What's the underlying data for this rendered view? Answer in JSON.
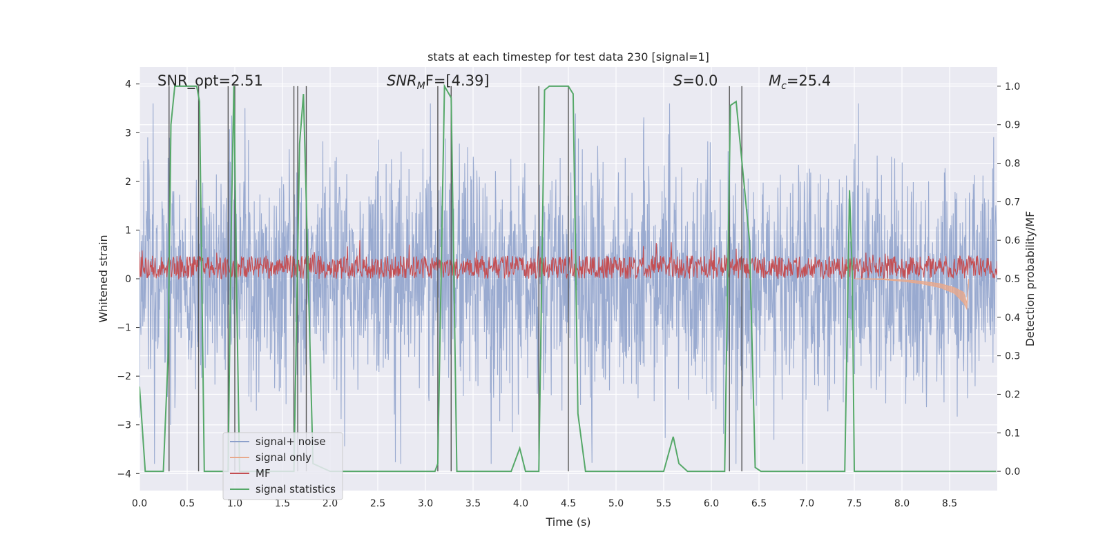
{
  "chart_data": {
    "type": "line",
    "title": "stats at each timestep for test data 230 [signal=1]",
    "xlabel": "Time (s)",
    "ylabel_left": "Whitened strain",
    "ylabel_right": "Detection probability/MF",
    "xlim": [
      0.0,
      9.0
    ],
    "ylim_left": [
      -4.35,
      4.35
    ],
    "ylim_right": [
      -0.05,
      1.05
    ],
    "x_ticks": [
      "0.0",
      "0.5",
      "1.0",
      "1.5",
      "2.0",
      "2.5",
      "3.0",
      "3.5",
      "4.0",
      "4.5",
      "5.0",
      "5.5",
      "6.0",
      "6.5",
      "7.0",
      "7.5",
      "8.0",
      "8.5"
    ],
    "y_ticks_left": [
      "4",
      "3",
      "2",
      "1",
      "0",
      "−1",
      "−2",
      "−3",
      "−4"
    ],
    "y_ticks_right": [
      "1.0",
      "0.9",
      "0.8",
      "0.7",
      "0.6",
      "0.5",
      "0.4",
      "0.3",
      "0.2",
      "0.1",
      "0.0"
    ],
    "annotations": {
      "snr_opt": "SNR_opt=2.51",
      "snr_mf_base": "SNR",
      "snr_mf_sub": "M",
      "snr_mf_rest": "F=[4.39]",
      "s_var": "S",
      "s_rest": "=0.0",
      "mc_var": "M",
      "mc_sub": "c",
      "mc_rest": "=25.4"
    },
    "legend": {
      "location": "lower-left",
      "items": [
        {
          "label": "signal+ noise",
          "color": "#8da0cb"
        },
        {
          "label": "signal only",
          "color": "#e8a98c"
        },
        {
          "label": "MF",
          "color": "#c44e52"
        },
        {
          "label": "signal statistics",
          "color": "#55a868"
        }
      ]
    },
    "series": [
      {
        "name": "signal+ noise",
        "axis": "left",
        "description": "whitened strain noise, amplitude roughly ±2.5 with peaks to ±3.5",
        "amplitude": 1.6
      },
      {
        "name": "signal only",
        "axis": "left",
        "description": "chirp near end of segment",
        "x": [
          7.5,
          7.8,
          8.0,
          8.2,
          8.4,
          8.55,
          8.65,
          8.68,
          8.7
        ],
        "y_top": [
          0.0,
          0.0,
          -0.02,
          -0.05,
          -0.1,
          -0.18,
          -0.28,
          -0.5,
          -0.1
        ],
        "y_bottom": [
          0.0,
          -0.02,
          -0.05,
          -0.1,
          -0.18,
          -0.3,
          -0.5,
          -0.62,
          0.0
        ]
      },
      {
        "name": "MF",
        "axis": "right",
        "description": "matched filter output, mean ~0.53",
        "mean": 0.53,
        "range": [
          0.5,
          0.6
        ]
      },
      {
        "name": "signal statistics",
        "axis": "right",
        "x": [
          0.0,
          0.06,
          0.25,
          0.3,
          0.33,
          0.37,
          0.45,
          0.6,
          0.63,
          0.68,
          0.93,
          0.96,
          0.99,
          1.02,
          1.05,
          1.08,
          1.62,
          1.68,
          1.72,
          1.75,
          1.82,
          2.0,
          2.3,
          2.6,
          3.1,
          3.13,
          3.2,
          3.27,
          3.33,
          3.9,
          3.99,
          4.05,
          4.19,
          4.25,
          4.3,
          4.5,
          4.55,
          4.6,
          4.68,
          4.8,
          5.5,
          5.6,
          5.66,
          5.75,
          6.14,
          6.2,
          6.26,
          6.4,
          6.46,
          6.52,
          7.4,
          7.45,
          7.48,
          7.5,
          7.6,
          8.99
        ],
        "y": [
          0.22,
          0.0,
          0.0,
          0.3,
          0.9,
          1.0,
          1.0,
          1.0,
          0.96,
          0.0,
          0.0,
          0.6,
          1.0,
          0.45,
          0.0,
          0.0,
          0.0,
          0.85,
          0.98,
          0.7,
          0.02,
          0.0,
          0.0,
          0.0,
          0.0,
          0.02,
          1.0,
          0.97,
          0.0,
          0.0,
          0.06,
          0.0,
          0.0,
          0.99,
          1.0,
          1.0,
          0.98,
          0.15,
          0.0,
          0.0,
          0.0,
          0.09,
          0.02,
          0.0,
          0.0,
          0.95,
          0.96,
          0.6,
          0.01,
          0.0,
          0.0,
          0.73,
          0.5,
          0.0,
          0.0,
          0.0
        ]
      },
      {
        "name": "detection markers",
        "axis": "right",
        "type": "vlines",
        "x": [
          0.31,
          0.62,
          0.93,
          1.0,
          1.62,
          1.66,
          1.75,
          3.13,
          3.27,
          4.19,
          4.5,
          6.19,
          6.32
        ],
        "range": [
          0.0,
          1.0
        ]
      }
    ]
  }
}
